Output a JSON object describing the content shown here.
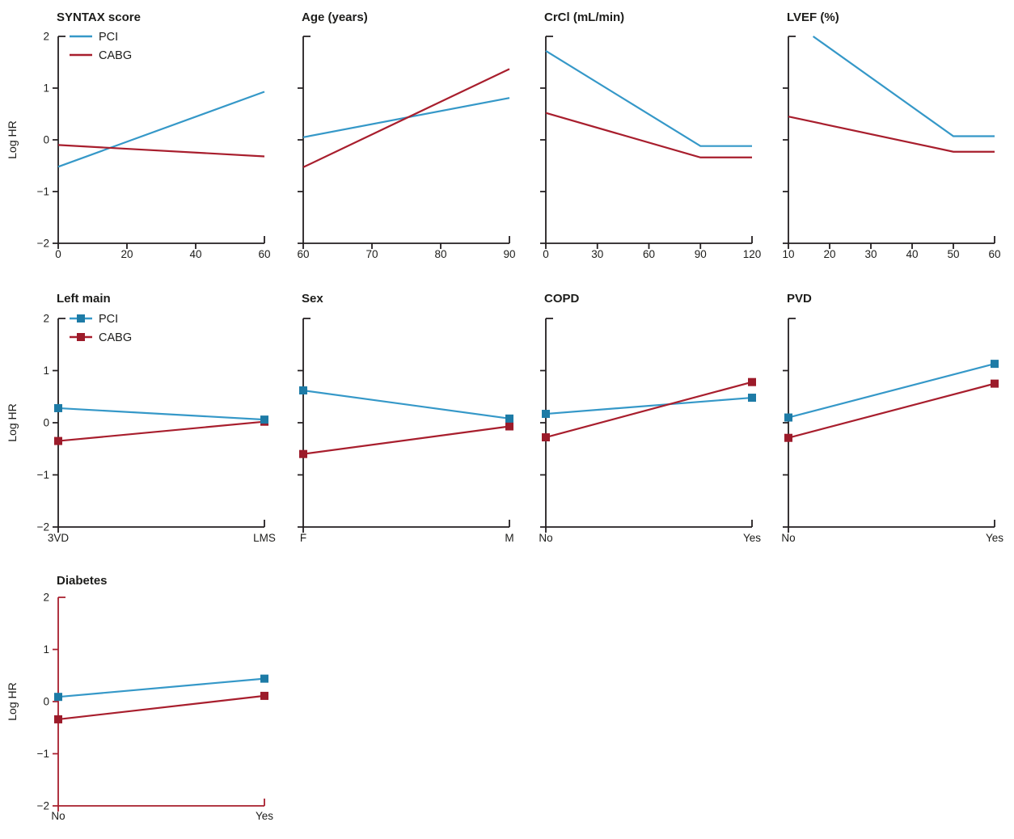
{
  "figure": {
    "ylabel": "Log HR",
    "legend_items": [
      "PCI",
      "CABG"
    ]
  },
  "colors": {
    "pci_line": "#3598c8",
    "pci_marker": "#1d7ba6",
    "cabg_line": "#a81e2d",
    "cabg_marker": "#9c1b2a",
    "axis": "#231f20",
    "diabetes_axis": "#a81e2d",
    "text": "#1d1d1b"
  },
  "chart_data": {
    "type": "line",
    "ylabel": "Log HR",
    "ylim": [
      -2,
      2
    ],
    "yticks": [
      2,
      1,
      0,
      -1,
      -2
    ],
    "ytick_labels": [
      "2",
      "1",
      "0",
      "−1",
      "−2"
    ],
    "grid": false,
    "legend_position": "top-left-first-panel-of-row",
    "panels": [
      {
        "title": "SYNTAX score",
        "xtype": "continuous",
        "xlim": [
          0,
          60
        ],
        "xticks": [
          0,
          20,
          40,
          60
        ],
        "legend": "lines",
        "markers": false,
        "series": [
          {
            "name": "PCI",
            "points": [
              [
                0,
                -0.52
              ],
              [
                60,
                0.93
              ]
            ]
          },
          {
            "name": "CABG",
            "points": [
              [
                0,
                -0.1
              ],
              [
                60,
                -0.32
              ]
            ]
          }
        ]
      },
      {
        "title": "Age (years)",
        "xtype": "continuous",
        "xlim": [
          60,
          90
        ],
        "xticks": [
          60,
          70,
          80,
          90
        ],
        "legend": false,
        "markers": false,
        "series": [
          {
            "name": "PCI",
            "points": [
              [
                60,
                0.05
              ],
              [
                90,
                0.81
              ]
            ]
          },
          {
            "name": "CABG",
            "points": [
              [
                60,
                -0.53
              ],
              [
                90,
                1.37
              ]
            ]
          }
        ]
      },
      {
        "title": "CrCl (mL/min)",
        "xtype": "continuous",
        "xlim": [
          0,
          120
        ],
        "xticks": [
          0,
          30,
          60,
          90,
          120
        ],
        "legend": false,
        "markers": false,
        "series": [
          {
            "name": "PCI",
            "points": [
              [
                0,
                1.72
              ],
              [
                90,
                -0.12
              ],
              [
                120,
                -0.12
              ]
            ]
          },
          {
            "name": "CABG",
            "points": [
              [
                0,
                0.52
              ],
              [
                90,
                -0.34
              ],
              [
                120,
                -0.34
              ]
            ]
          }
        ]
      },
      {
        "title": "LVEF (%)",
        "xtype": "continuous",
        "xlim": [
          10,
          60
        ],
        "xticks": [
          10,
          20,
          30,
          40,
          50,
          60
        ],
        "legend": false,
        "markers": false,
        "series": [
          {
            "name": "PCI",
            "points": [
              [
                16,
                2.0
              ],
              [
                50,
                0.07
              ],
              [
                60,
                0.07
              ]
            ],
            "note": "clipped at top of axis"
          },
          {
            "name": "CABG",
            "points": [
              [
                10,
                0.45
              ],
              [
                50,
                -0.23
              ],
              [
                60,
                -0.23
              ]
            ]
          }
        ]
      },
      {
        "title": "Left main",
        "xtype": "categorical",
        "categories": [
          "3VD",
          "LMS"
        ],
        "legend": "markers",
        "markers": true,
        "series": [
          {
            "name": "PCI",
            "values": [
              0.28,
              0.06
            ]
          },
          {
            "name": "CABG",
            "values": [
              -0.35,
              0.02
            ]
          }
        ]
      },
      {
        "title": "Sex",
        "xtype": "categorical",
        "categories": [
          "F",
          "M"
        ],
        "legend": false,
        "markers": true,
        "series": [
          {
            "name": "PCI",
            "values": [
              0.62,
              0.08
            ]
          },
          {
            "name": "CABG",
            "values": [
              -0.6,
              -0.07
            ]
          }
        ]
      },
      {
        "title": "COPD",
        "xtype": "categorical",
        "categories": [
          "No",
          "Yes"
        ],
        "legend": false,
        "markers": true,
        "series": [
          {
            "name": "PCI",
            "values": [
              0.17,
              0.48
            ]
          },
          {
            "name": "CABG",
            "values": [
              -0.28,
              0.78
            ]
          }
        ]
      },
      {
        "title": "PVD",
        "xtype": "categorical",
        "categories": [
          "No",
          "Yes"
        ],
        "legend": false,
        "markers": true,
        "series": [
          {
            "name": "PCI",
            "values": [
              0.1,
              1.13
            ]
          },
          {
            "name": "CABG",
            "values": [
              -0.29,
              0.75
            ]
          }
        ]
      },
      {
        "title": "Diabetes",
        "xtype": "categorical",
        "categories": [
          "No",
          "Yes"
        ],
        "legend": false,
        "markers": true,
        "axis_color": "#a81e2d",
        "series": [
          {
            "name": "PCI",
            "values": [
              0.09,
              0.44
            ]
          },
          {
            "name": "CABG",
            "values": [
              -0.34,
              0.11
            ]
          }
        ]
      }
    ]
  }
}
